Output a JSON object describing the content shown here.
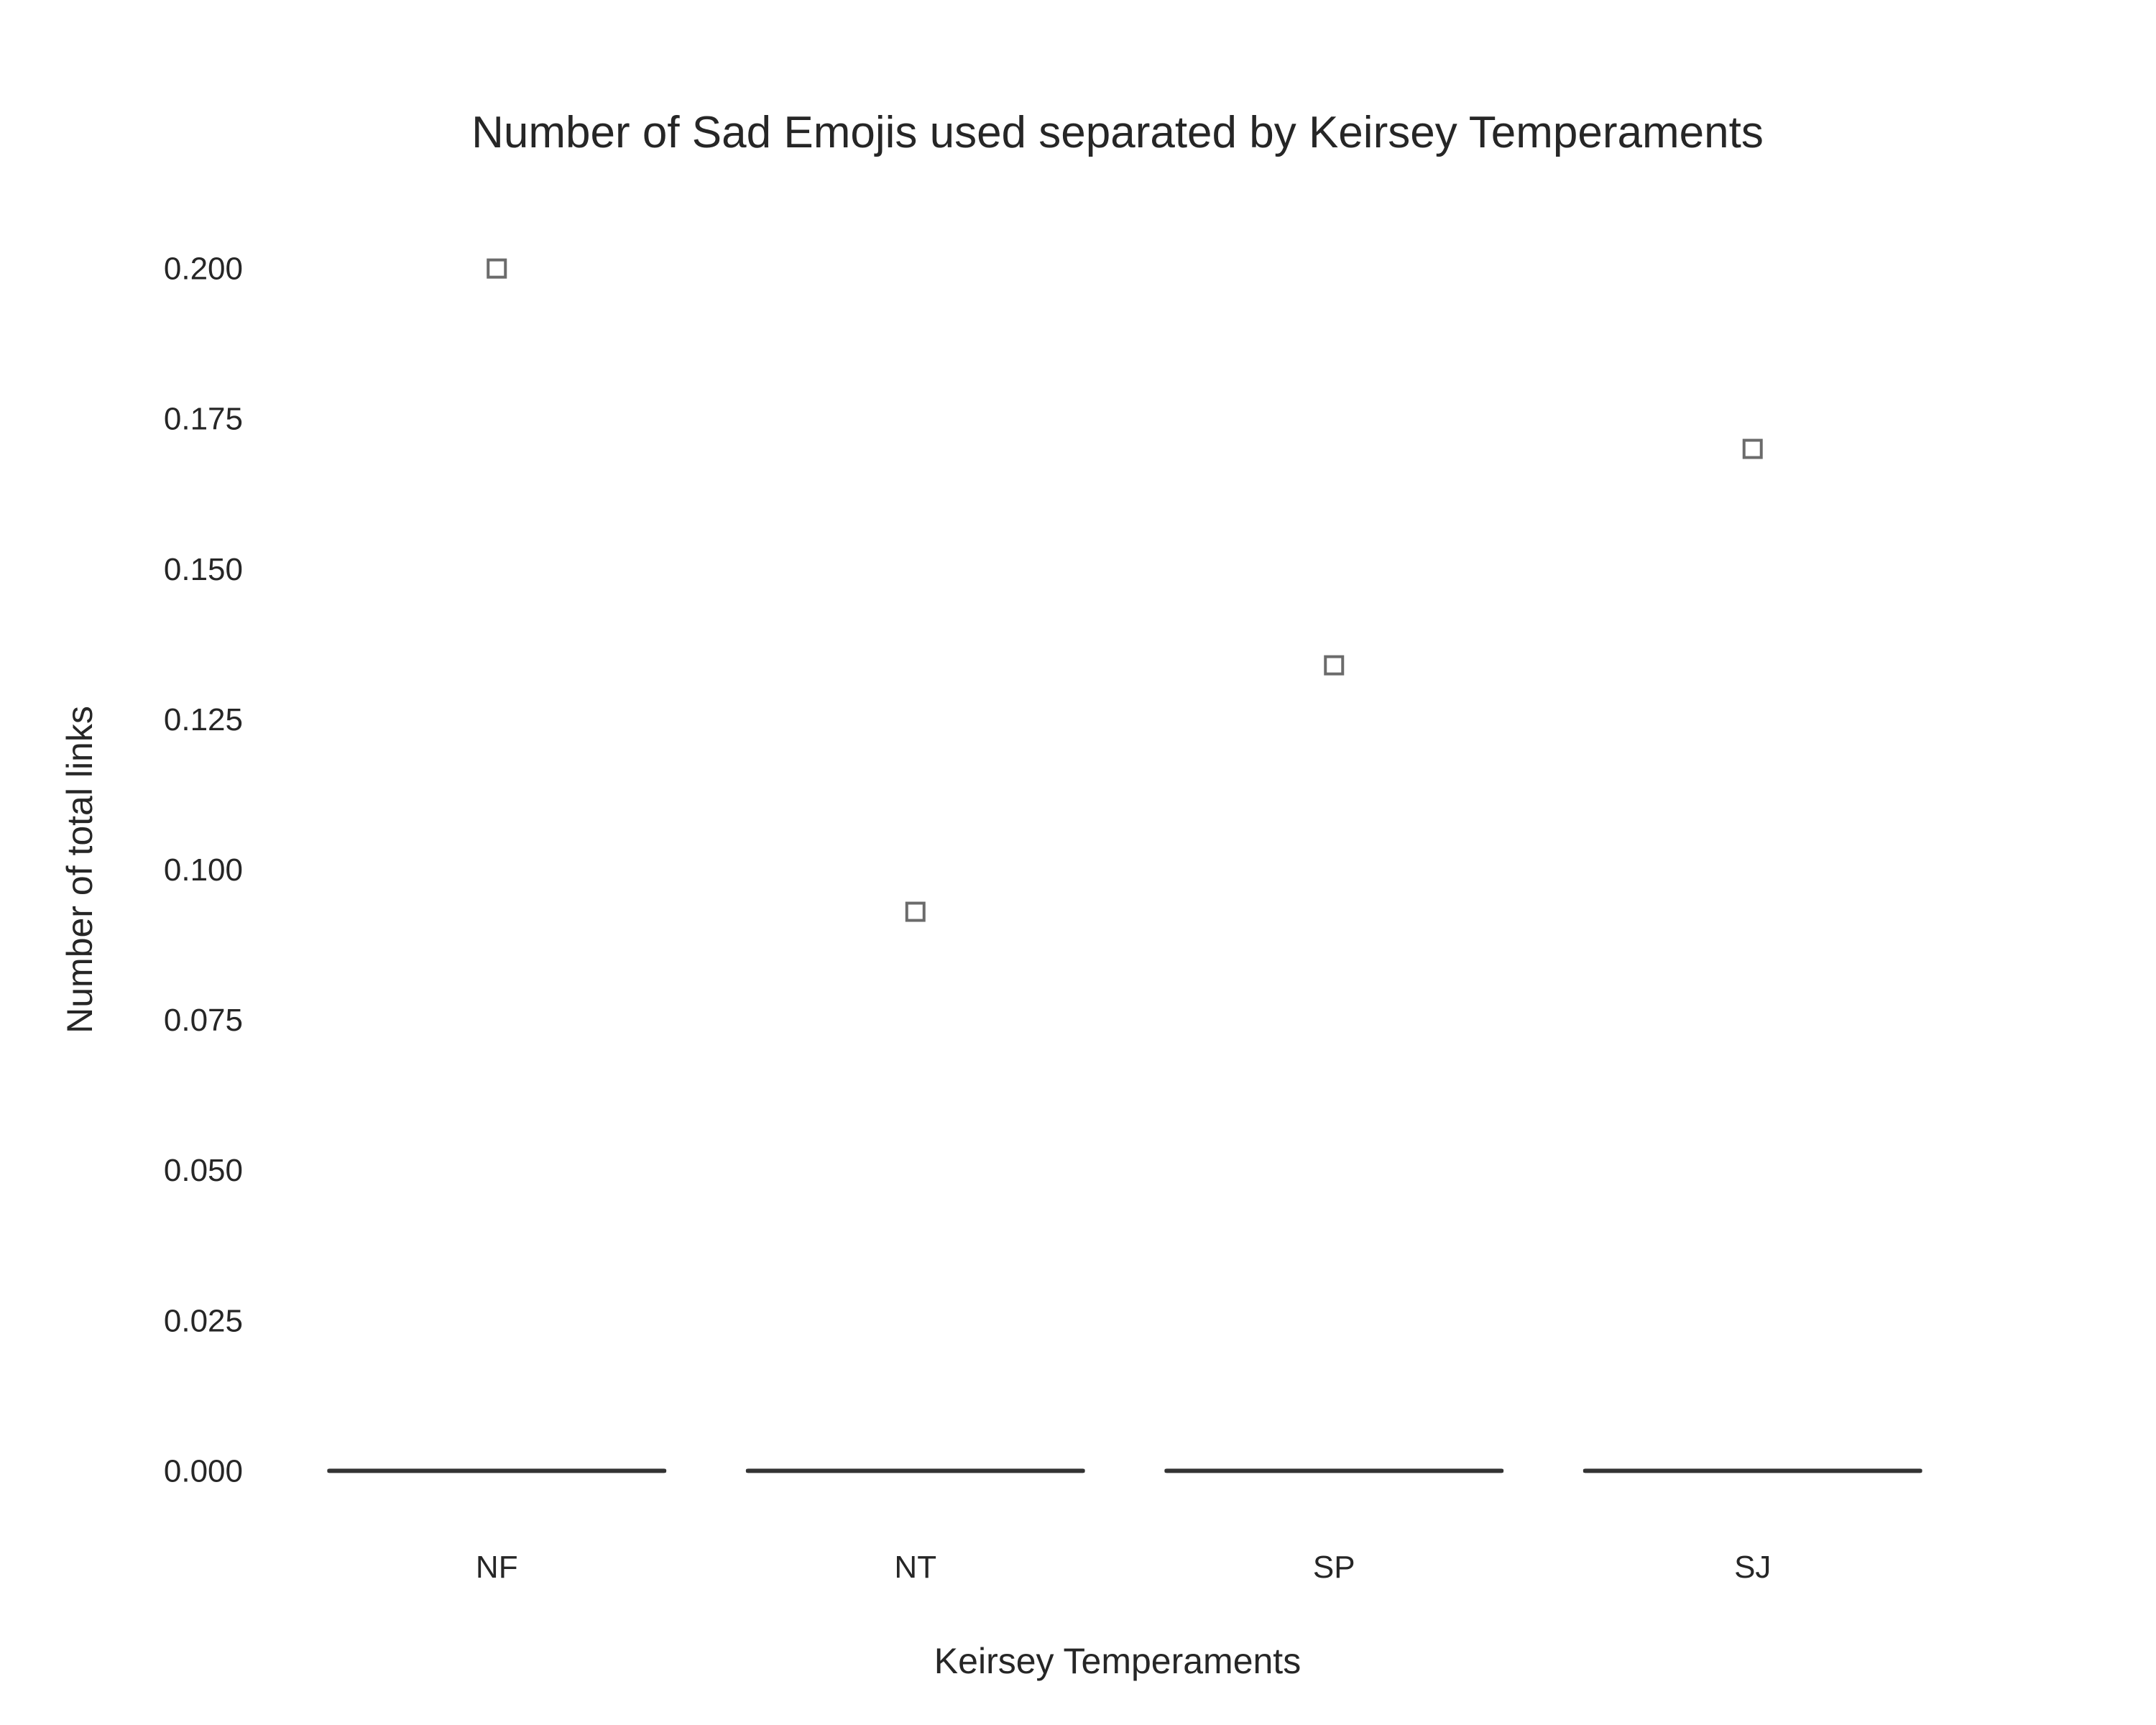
{
  "chart_data": {
    "type": "box",
    "title": "Number of Sad Emojis used separated by Keirsey Temperaments",
    "xlabel": "Keirsey Temperaments",
    "ylabel": "Number of total links",
    "categories": [
      "NF",
      "NT",
      "SP",
      "SJ"
    ],
    "yticks": [
      "0.000",
      "0.025",
      "0.050",
      "0.075",
      "0.100",
      "0.125",
      "0.150",
      "0.175",
      "0.200"
    ],
    "ylim": [
      -0.01,
      0.21
    ],
    "grid": false,
    "legend": "none",
    "series": [
      {
        "medians": [
          0,
          0,
          0,
          0
        ],
        "q1": [
          0,
          0,
          0,
          0
        ],
        "q3": [
          0,
          0,
          0,
          0
        ],
        "outliers": [
          [
            0.2
          ],
          [
            0.093
          ],
          [
            0.134
          ],
          [
            0.17
          ]
        ]
      }
    ],
    "colors": {
      "box": "#333333",
      "outlier": "#6b6b6b",
      "text": "#262626"
    }
  }
}
